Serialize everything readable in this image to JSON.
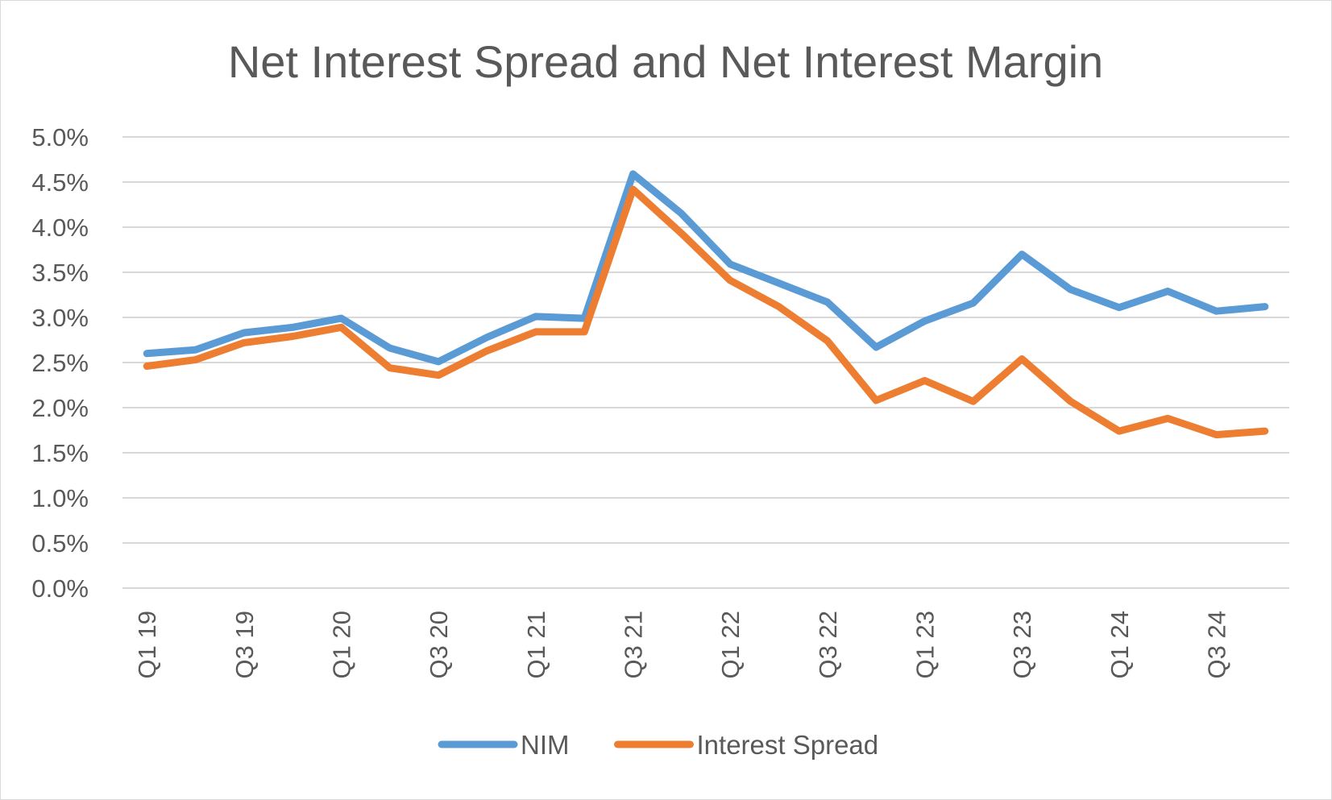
{
  "chart_data": {
    "type": "line",
    "title": "Net Interest Spread and Net Interest Margin",
    "xlabel": "",
    "ylabel": "",
    "ylim": [
      0,
      5.0
    ],
    "y_ticks": [
      "0.0%",
      "0.5%",
      "1.0%",
      "1.5%",
      "2.0%",
      "2.5%",
      "3.0%",
      "3.5%",
      "4.0%",
      "4.5%",
      "5.0%"
    ],
    "grid": true,
    "legend_position": "bottom",
    "categories": [
      "Q1 19",
      "Q2 19",
      "Q3 19",
      "Q4 19",
      "Q1 20",
      "Q2 20",
      "Q3 20",
      "Q4 20",
      "Q1 21",
      "Q2 21",
      "Q3 21",
      "Q4 21",
      "Q1 22",
      "Q2 22",
      "Q3 22",
      "Q4 22",
      "Q1 23",
      "Q2 23",
      "Q3 23",
      "Q4 23",
      "Q1 24",
      "Q2 24",
      "Q3 24",
      "Q4 24"
    ],
    "x_tick_labels": [
      "Q1 19",
      "Q3 19",
      "Q1 20",
      "Q3 20",
      "Q1 21",
      "Q3 21",
      "Q1 22",
      "Q3 22",
      "Q1 23",
      "Q3 23",
      "Q1 24",
      "Q3 24"
    ],
    "series": [
      {
        "name": "NIM",
        "color": "#5b9bd5",
        "values": [
          2.6,
          2.64,
          2.83,
          2.89,
          2.99,
          2.66,
          2.51,
          2.78,
          3.01,
          2.99,
          4.59,
          4.15,
          3.59,
          3.38,
          3.17,
          2.67,
          2.96,
          3.16,
          3.7,
          3.31,
          3.11,
          3.29,
          3.07,
          3.12
        ]
      },
      {
        "name": "Interest Spread",
        "color": "#ed7d31",
        "values": [
          2.46,
          2.53,
          2.72,
          2.79,
          2.89,
          2.44,
          2.36,
          2.63,
          2.84,
          2.84,
          4.42,
          3.93,
          3.41,
          3.12,
          2.74,
          2.08,
          2.3,
          2.07,
          2.54,
          2.07,
          1.74,
          1.88,
          1.7,
          1.74
        ]
      }
    ]
  }
}
